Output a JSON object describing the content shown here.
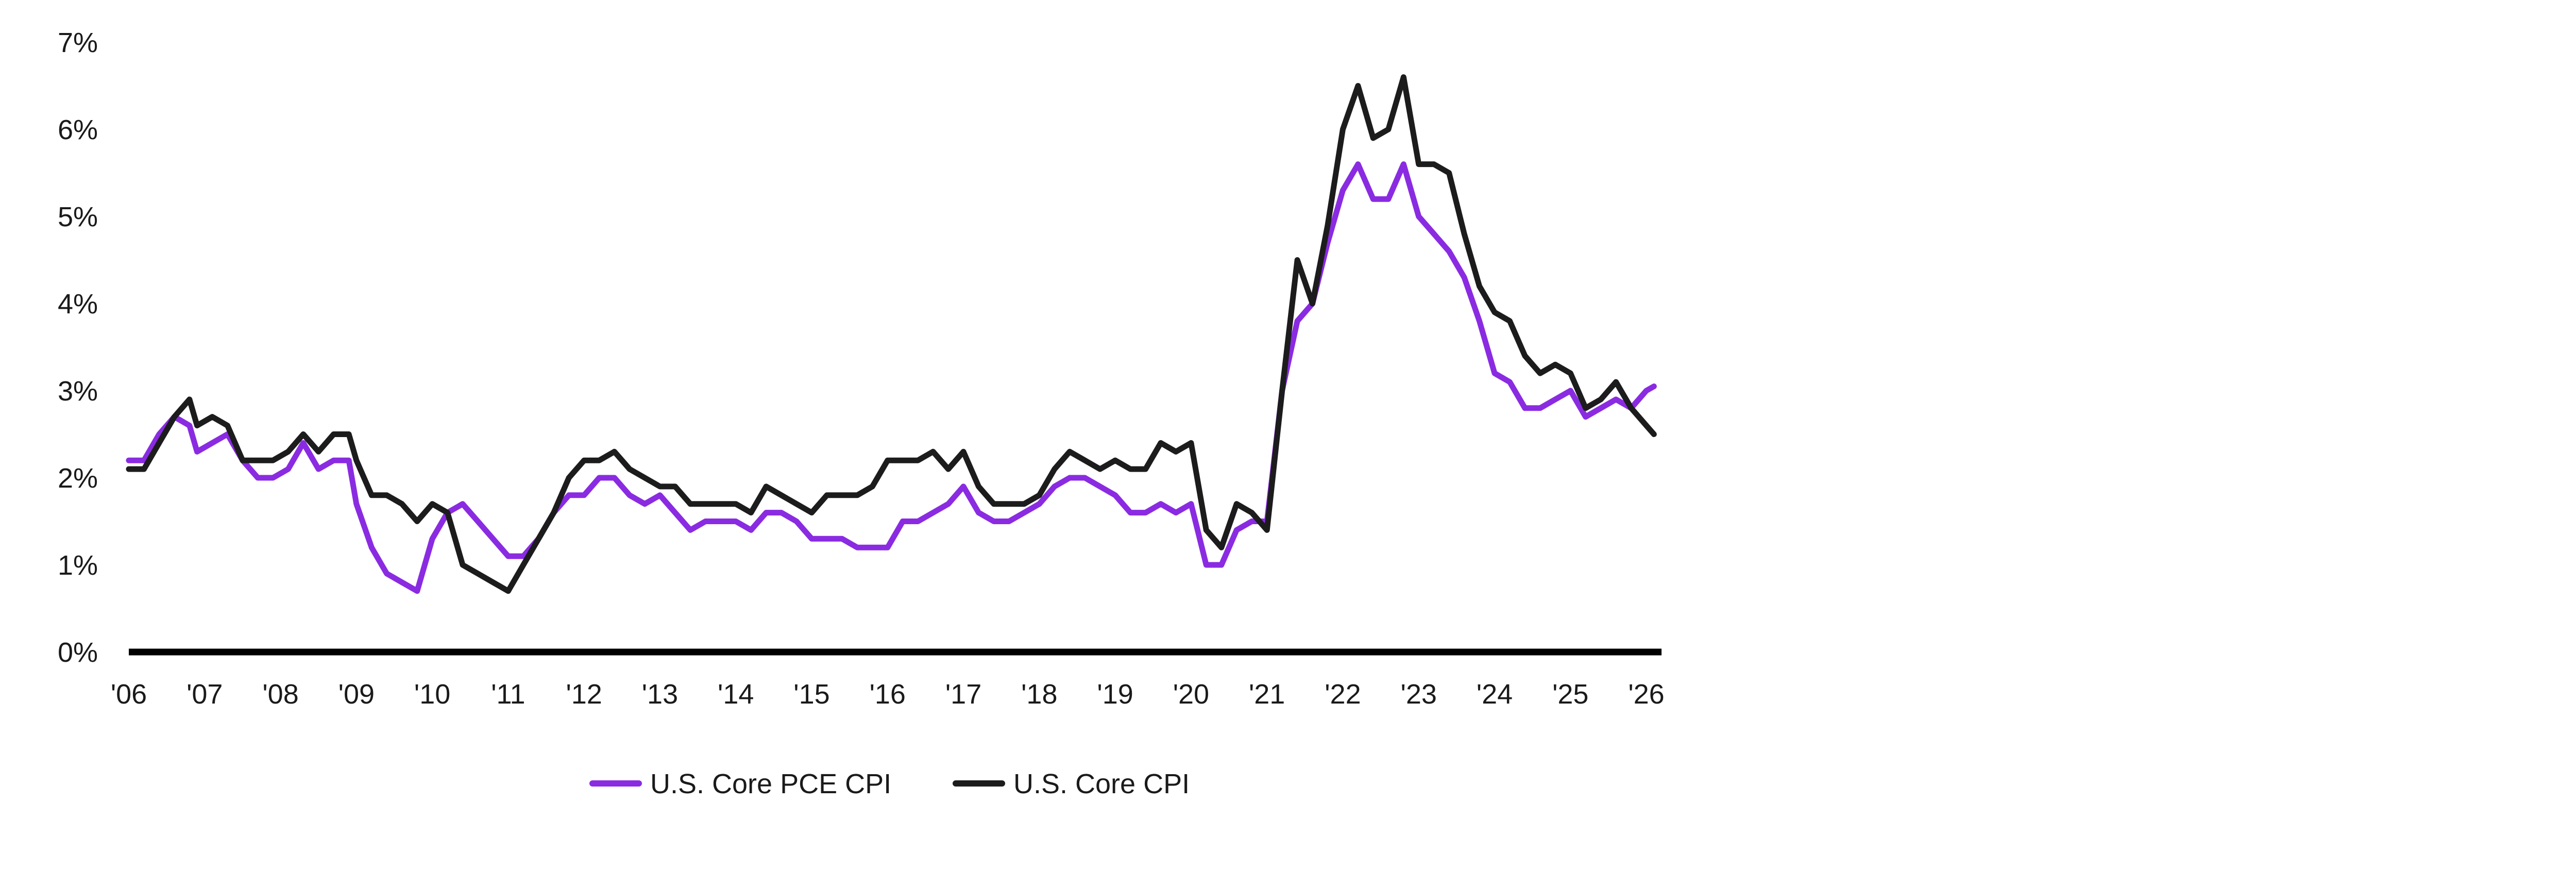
{
  "chart_data": {
    "type": "line",
    "title": "",
    "xlabel": "",
    "ylabel": "",
    "ylim": [
      0,
      7
    ],
    "xlim": [
      2006,
      2026.2
    ],
    "y_ticks": [
      0,
      1,
      2,
      3,
      4,
      5,
      6,
      7
    ],
    "y_tick_labels": [
      "0%",
      "1%",
      "2%",
      "3%",
      "4%",
      "5%",
      "6%",
      "7%"
    ],
    "x_ticks": [
      2006,
      2007,
      2008,
      2009,
      2010,
      2011,
      2012,
      2013,
      2014,
      2015,
      2016,
      2017,
      2018,
      2019,
      2020,
      2021,
      2022,
      2023,
      2024,
      2025,
      2026
    ],
    "x_tick_labels": [
      "'06",
      "'07",
      "'08",
      "'09",
      "'10",
      "'11",
      "'12",
      "'13",
      "'14",
      "'15",
      "'16",
      "'17",
      "'18",
      "'19",
      "'20",
      "'21",
      "'22",
      "'23",
      "'24",
      "'25",
      "'26"
    ],
    "grid": false,
    "legend_position": "bottom",
    "colors": {
      "pce": "#8a2be2",
      "cpi": "#1c1c1c",
      "axis": "#000000"
    },
    "series": [
      {
        "name": "U.S. Core PCE CPI",
        "color": "#8a2be2",
        "points": [
          [
            2006.0,
            2.2
          ],
          [
            2006.2,
            2.2
          ],
          [
            2006.4,
            2.5
          ],
          [
            2006.6,
            2.7
          ],
          [
            2006.8,
            2.6
          ],
          [
            2006.9,
            2.3
          ],
          [
            2007.1,
            2.4
          ],
          [
            2007.3,
            2.5
          ],
          [
            2007.5,
            2.2
          ],
          [
            2007.7,
            2.0
          ],
          [
            2007.9,
            2.0
          ],
          [
            2008.1,
            2.1
          ],
          [
            2008.3,
            2.4
          ],
          [
            2008.5,
            2.1
          ],
          [
            2008.7,
            2.2
          ],
          [
            2008.9,
            2.2
          ],
          [
            2009.0,
            1.7
          ],
          [
            2009.2,
            1.2
          ],
          [
            2009.4,
            0.9
          ],
          [
            2009.6,
            0.8
          ],
          [
            2009.8,
            0.7
          ],
          [
            2010.0,
            1.3
          ],
          [
            2010.2,
            1.6
          ],
          [
            2010.4,
            1.7
          ],
          [
            2010.6,
            1.5
          ],
          [
            2010.8,
            1.3
          ],
          [
            2011.0,
            1.1
          ],
          [
            2011.2,
            1.1
          ],
          [
            2011.4,
            1.3
          ],
          [
            2011.6,
            1.6
          ],
          [
            2011.8,
            1.8
          ],
          [
            2012.0,
            1.8
          ],
          [
            2012.2,
            2.0
          ],
          [
            2012.4,
            2.0
          ],
          [
            2012.6,
            1.8
          ],
          [
            2012.8,
            1.7
          ],
          [
            2013.0,
            1.8
          ],
          [
            2013.2,
            1.6
          ],
          [
            2013.4,
            1.4
          ],
          [
            2013.6,
            1.5
          ],
          [
            2013.8,
            1.5
          ],
          [
            2014.0,
            1.5
          ],
          [
            2014.2,
            1.4
          ],
          [
            2014.4,
            1.6
          ],
          [
            2014.6,
            1.6
          ],
          [
            2014.8,
            1.5
          ],
          [
            2015.0,
            1.3
          ],
          [
            2015.2,
            1.3
          ],
          [
            2015.4,
            1.3
          ],
          [
            2015.6,
            1.2
          ],
          [
            2015.8,
            1.2
          ],
          [
            2016.0,
            1.2
          ],
          [
            2016.2,
            1.5
          ],
          [
            2016.4,
            1.5
          ],
          [
            2016.6,
            1.6
          ],
          [
            2016.8,
            1.7
          ],
          [
            2017.0,
            1.9
          ],
          [
            2017.2,
            1.6
          ],
          [
            2017.4,
            1.5
          ],
          [
            2017.6,
            1.5
          ],
          [
            2017.8,
            1.6
          ],
          [
            2018.0,
            1.7
          ],
          [
            2018.2,
            1.9
          ],
          [
            2018.4,
            2.0
          ],
          [
            2018.6,
            2.0
          ],
          [
            2018.8,
            1.9
          ],
          [
            2019.0,
            1.8
          ],
          [
            2019.2,
            1.6
          ],
          [
            2019.4,
            1.6
          ],
          [
            2019.6,
            1.7
          ],
          [
            2019.8,
            1.6
          ],
          [
            2020.0,
            1.7
          ],
          [
            2020.2,
            1.0
          ],
          [
            2020.4,
            1.0
          ],
          [
            2020.6,
            1.4
          ],
          [
            2020.8,
            1.5
          ],
          [
            2021.0,
            1.5
          ],
          [
            2021.2,
            3.0
          ],
          [
            2021.4,
            3.8
          ],
          [
            2021.6,
            4.0
          ],
          [
            2021.8,
            4.7
          ],
          [
            2022.0,
            5.3
          ],
          [
            2022.2,
            5.6
          ],
          [
            2022.4,
            5.2
          ],
          [
            2022.6,
            5.2
          ],
          [
            2022.8,
            5.6
          ],
          [
            2023.0,
            5.0
          ],
          [
            2023.2,
            4.8
          ],
          [
            2023.4,
            4.6
          ],
          [
            2023.6,
            4.3
          ],
          [
            2023.8,
            3.8
          ],
          [
            2024.0,
            3.2
          ],
          [
            2024.2,
            3.1
          ],
          [
            2024.4,
            2.8
          ],
          [
            2024.6,
            2.8
          ],
          [
            2024.8,
            2.9
          ],
          [
            2025.0,
            3.0
          ],
          [
            2025.2,
            2.7
          ],
          [
            2025.4,
            2.8
          ],
          [
            2025.6,
            2.9
          ],
          [
            2025.8,
            2.8
          ],
          [
            2026.0,
            3.0
          ],
          [
            2026.1,
            3.05
          ]
        ]
      },
      {
        "name": "U.S. Core CPI",
        "color": "#1c1c1c",
        "points": [
          [
            2006.0,
            2.1
          ],
          [
            2006.2,
            2.1
          ],
          [
            2006.4,
            2.4
          ],
          [
            2006.6,
            2.7
          ],
          [
            2006.8,
            2.9
          ],
          [
            2006.9,
            2.6
          ],
          [
            2007.1,
            2.7
          ],
          [
            2007.3,
            2.6
          ],
          [
            2007.5,
            2.2
          ],
          [
            2007.7,
            2.2
          ],
          [
            2007.9,
            2.2
          ],
          [
            2008.1,
            2.3
          ],
          [
            2008.3,
            2.5
          ],
          [
            2008.5,
            2.3
          ],
          [
            2008.7,
            2.5
          ],
          [
            2008.9,
            2.5
          ],
          [
            2009.0,
            2.2
          ],
          [
            2009.2,
            1.8
          ],
          [
            2009.4,
            1.8
          ],
          [
            2009.6,
            1.7
          ],
          [
            2009.8,
            1.5
          ],
          [
            2010.0,
            1.7
          ],
          [
            2010.2,
            1.6
          ],
          [
            2010.4,
            1.0
          ],
          [
            2010.6,
            0.9
          ],
          [
            2010.8,
            0.8
          ],
          [
            2011.0,
            0.7
          ],
          [
            2011.2,
            1.0
          ],
          [
            2011.4,
            1.3
          ],
          [
            2011.6,
            1.6
          ],
          [
            2011.8,
            2.0
          ],
          [
            2012.0,
            2.2
          ],
          [
            2012.2,
            2.2
          ],
          [
            2012.4,
            2.3
          ],
          [
            2012.6,
            2.1
          ],
          [
            2012.8,
            2.0
          ],
          [
            2013.0,
            1.9
          ],
          [
            2013.2,
            1.9
          ],
          [
            2013.4,
            1.7
          ],
          [
            2013.6,
            1.7
          ],
          [
            2013.8,
            1.7
          ],
          [
            2014.0,
            1.7
          ],
          [
            2014.2,
            1.6
          ],
          [
            2014.4,
            1.9
          ],
          [
            2014.6,
            1.8
          ],
          [
            2014.8,
            1.7
          ],
          [
            2015.0,
            1.6
          ],
          [
            2015.2,
            1.8
          ],
          [
            2015.4,
            1.8
          ],
          [
            2015.6,
            1.8
          ],
          [
            2015.8,
            1.9
          ],
          [
            2016.0,
            2.2
          ],
          [
            2016.2,
            2.2
          ],
          [
            2016.4,
            2.2
          ],
          [
            2016.6,
            2.3
          ],
          [
            2016.8,
            2.1
          ],
          [
            2017.0,
            2.3
          ],
          [
            2017.2,
            1.9
          ],
          [
            2017.4,
            1.7
          ],
          [
            2017.6,
            1.7
          ],
          [
            2017.8,
            1.7
          ],
          [
            2018.0,
            1.8
          ],
          [
            2018.2,
            2.1
          ],
          [
            2018.4,
            2.3
          ],
          [
            2018.6,
            2.2
          ],
          [
            2018.8,
            2.1
          ],
          [
            2019.0,
            2.2
          ],
          [
            2019.2,
            2.1
          ],
          [
            2019.4,
            2.1
          ],
          [
            2019.6,
            2.4
          ],
          [
            2019.8,
            2.3
          ],
          [
            2020.0,
            2.4
          ],
          [
            2020.2,
            1.4
          ],
          [
            2020.4,
            1.2
          ],
          [
            2020.6,
            1.7
          ],
          [
            2020.8,
            1.6
          ],
          [
            2021.0,
            1.4
          ],
          [
            2021.2,
            3.0
          ],
          [
            2021.4,
            4.5
          ],
          [
            2021.6,
            4.0
          ],
          [
            2021.8,
            4.9
          ],
          [
            2022.0,
            6.0
          ],
          [
            2022.2,
            6.5
          ],
          [
            2022.4,
            5.9
          ],
          [
            2022.6,
            6.0
          ],
          [
            2022.8,
            6.6
          ],
          [
            2023.0,
            5.6
          ],
          [
            2023.2,
            5.6
          ],
          [
            2023.4,
            5.5
          ],
          [
            2023.6,
            4.8
          ],
          [
            2023.8,
            4.2
          ],
          [
            2024.0,
            3.9
          ],
          [
            2024.2,
            3.8
          ],
          [
            2024.4,
            3.4
          ],
          [
            2024.6,
            3.2
          ],
          [
            2024.8,
            3.3
          ],
          [
            2025.0,
            3.2
          ],
          [
            2025.2,
            2.8
          ],
          [
            2025.4,
            2.9
          ],
          [
            2025.6,
            3.1
          ],
          [
            2025.8,
            2.8
          ],
          [
            2026.0,
            2.6
          ],
          [
            2026.1,
            2.5
          ]
        ]
      }
    ]
  }
}
